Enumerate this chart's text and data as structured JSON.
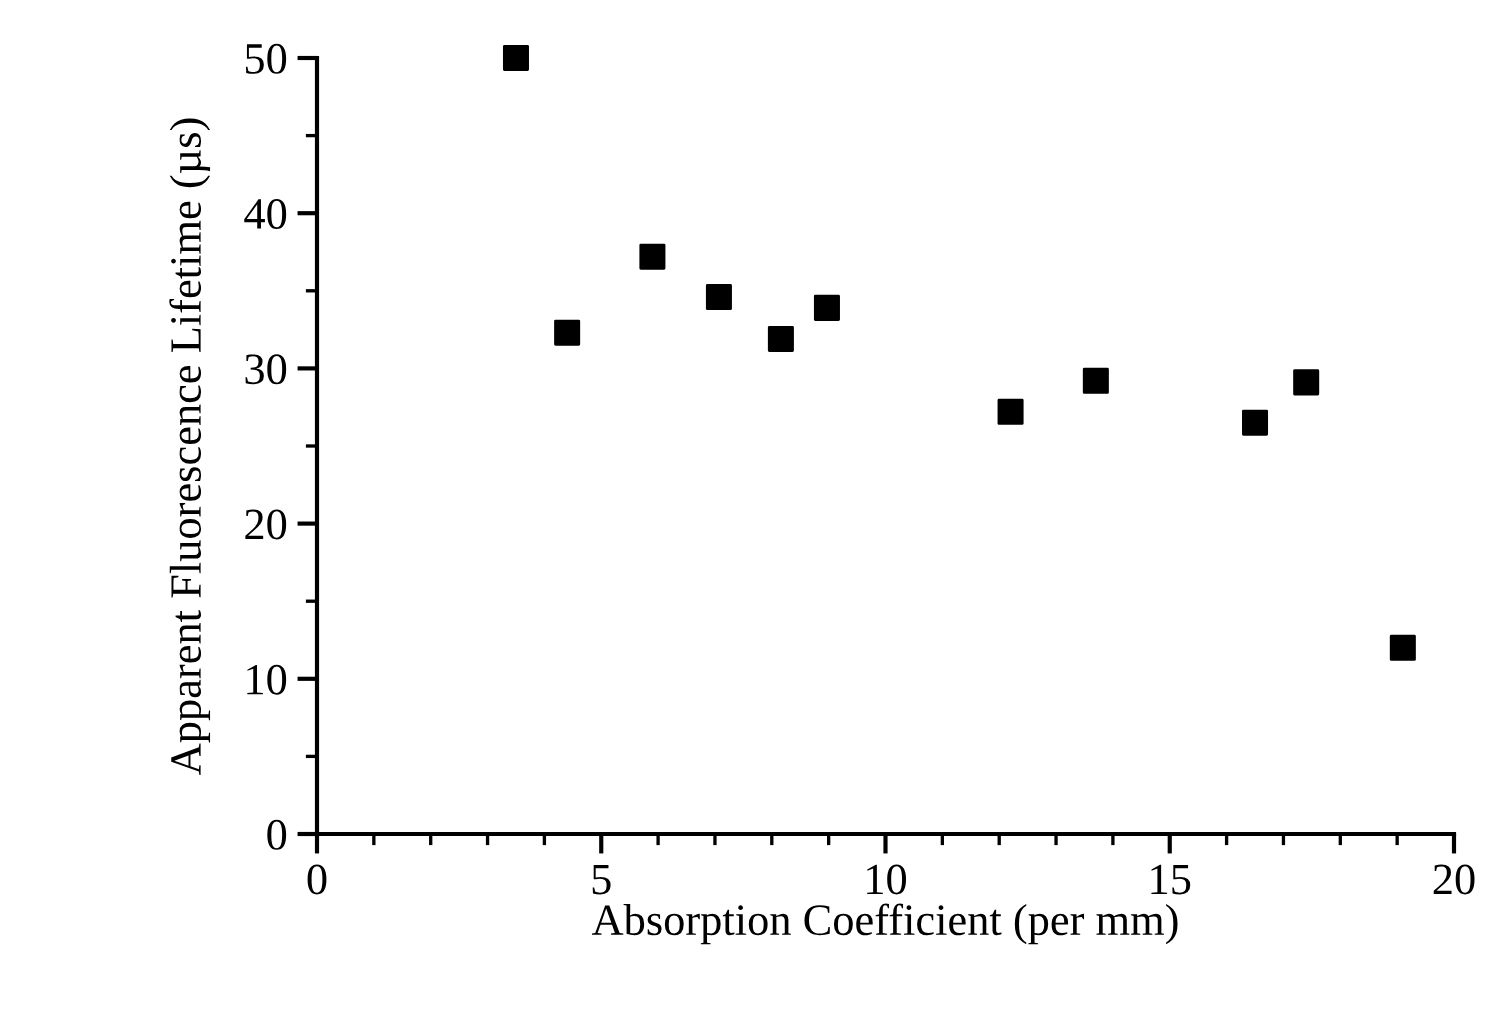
{
  "chart_data": {
    "type": "scatter",
    "xlabel": "Absorption Coefficient (per mm)",
    "ylabel": "Apparent Fluorescence Lifetime (µs)",
    "x": [
      3.5,
      4.4,
      5.9,
      7.07,
      8.16,
      8.97,
      12.2,
      13.7,
      16.5,
      17.4,
      19.1
    ],
    "values": [
      50,
      32.3,
      37.2,
      34.6,
      31.9,
      33.9,
      27.2,
      29.2,
      26.5,
      29.1,
      12.0
    ],
    "color": "#000000",
    "marker": "square",
    "xlim": [
      0,
      20
    ],
    "xticks": [
      0,
      5,
      10,
      15,
      20
    ],
    "ylim": [
      0,
      50
    ],
    "yticks": [
      0,
      10,
      20,
      30,
      40,
      50
    ],
    "grid": false,
    "legend": false
  }
}
